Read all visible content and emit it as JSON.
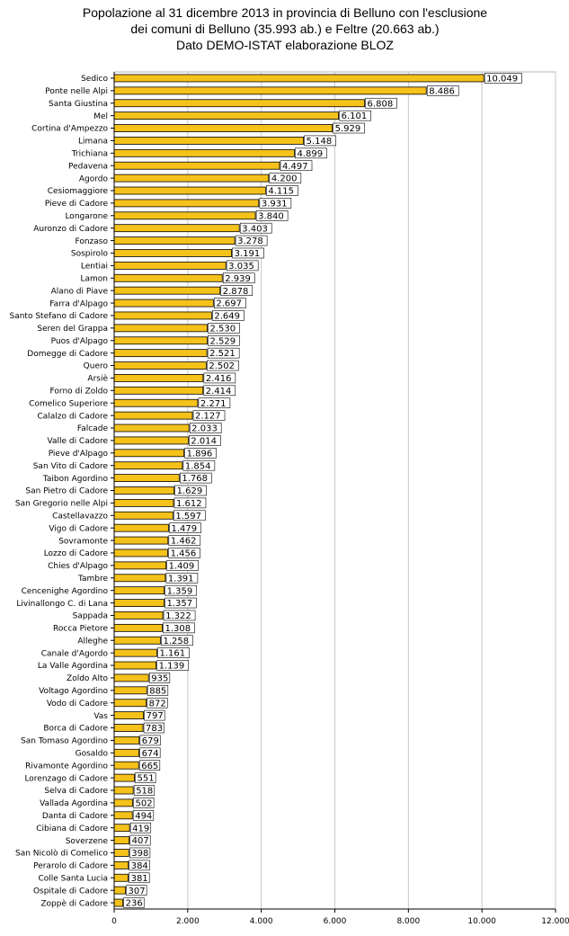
{
  "chart_data": {
    "type": "bar",
    "orientation": "horizontal",
    "title": [
      "Popolazione al 31 dicembre 2013 in provincia di Belluno con l'esclusione",
      "dei comuni di Belluno (35.993 ab.) e Feltre (20.663 ab.)",
      "Dato DEMO-ISTAT elaborazione BLOZ"
    ],
    "xlim": [
      0,
      12000
    ],
    "xticks": [
      0,
      2000,
      4000,
      6000,
      8000,
      10000,
      12000
    ],
    "xtick_labels": [
      "0",
      "2.000",
      "4.000",
      "6.000",
      "8.000",
      "10.000",
      "12.000"
    ],
    "grid": true,
    "legend": false,
    "bar_color": "#f5c21b",
    "categories": [
      "Sedico",
      "Ponte nelle Alpi",
      "Santa Giustina",
      "Mel",
      "Cortina d'Ampezzo",
      "Limana",
      "Trichiana",
      "Pedavena",
      "Agordo",
      "Cesiomaggiore",
      "Pieve di Cadore",
      "Longarone",
      "Auronzo di Cadore",
      "Fonzaso",
      "Sospirolo",
      "Lentiai",
      "Lamon",
      "Alano di Piave",
      "Farra d'Alpago",
      "Santo Stefano di Cadore",
      "Seren del Grappa",
      "Puos d'Alpago",
      "Domegge di Cadore",
      "Quero",
      "Arsiè",
      "Forno di Zoldo",
      "Comelico Superiore",
      "Calalzo di Cadore",
      "Falcade",
      "Valle di Cadore",
      "Pieve d'Alpago",
      "San Vito di Cadore",
      "Taibon Agordino",
      "San Pietro di Cadore",
      "San Gregorio nelle Alpi",
      "Castellavazzo",
      "Vigo di Cadore",
      "Sovramonte",
      "Lozzo di Cadore",
      "Chies d'Alpago",
      "Tambre",
      "Cencenighe Agordino",
      "Livinallongo C. di Lana",
      "Sappada",
      "Rocca Pietore",
      "Alleghe",
      "Canale d'Agordo",
      "La Valle Agordina",
      "Zoldo Alto",
      "Voltago Agordino",
      "Vodo di Cadore",
      "Vas",
      "Borca di Cadore",
      "San Tomaso Agordino",
      "Gosaldo",
      "Rivamonte Agordino",
      "Lorenzago di Cadore",
      "Selva di Cadore",
      "Vallada Agordina",
      "Danta di Cadore",
      "Cibiana di Cadore",
      "Soverzene",
      "San Nicolò di Comelico",
      "Perarolo di Cadore",
      "Colle Santa Lucia",
      "Ospitale di Cadore",
      "Zoppè di Cadore"
    ],
    "values": [
      10049,
      8486,
      6808,
      6101,
      5929,
      5148,
      4899,
      4497,
      4200,
      4115,
      3931,
      3840,
      3403,
      3278,
      3191,
      3035,
      2939,
      2878,
      2697,
      2649,
      2530,
      2529,
      2521,
      2502,
      2416,
      2414,
      2271,
      2127,
      2033,
      2014,
      1896,
      1854,
      1768,
      1629,
      1612,
      1597,
      1479,
      1462,
      1456,
      1409,
      1391,
      1359,
      1357,
      1322,
      1308,
      1258,
      1161,
      1139,
      935,
      885,
      872,
      797,
      783,
      679,
      674,
      665,
      551,
      518,
      502,
      494,
      419,
      407,
      398,
      384,
      381,
      307,
      236
    ],
    "value_labels": [
      "10.049",
      "8.486",
      "6.808",
      "6.101",
      "5.929",
      "5.148",
      "4.899",
      "4.497",
      "4.200",
      "4.115",
      "3.931",
      "3.840",
      "3.403",
      "3.278",
      "3.191",
      "3.035",
      "2.939",
      "2.878",
      "2.697",
      "2.649",
      "2.530",
      "2.529",
      "2.521",
      "2.502",
      "2.416",
      "2.414",
      "2.271",
      "2.127",
      "2.033",
      "2.014",
      "1.896",
      "1.854",
      "1.768",
      "1.629",
      "1.612",
      "1.597",
      "1.479",
      "1.462",
      "1.456",
      "1.409",
      "1.391",
      "1.359",
      "1.357",
      "1.322",
      "1.308",
      "1.258",
      "1.161",
      "1.139",
      "935",
      "885",
      "872",
      "797",
      "783",
      "679",
      "674",
      "665",
      "551",
      "518",
      "502",
      "494",
      "419",
      "407",
      "398",
      "384",
      "381",
      "307",
      "236"
    ]
  }
}
